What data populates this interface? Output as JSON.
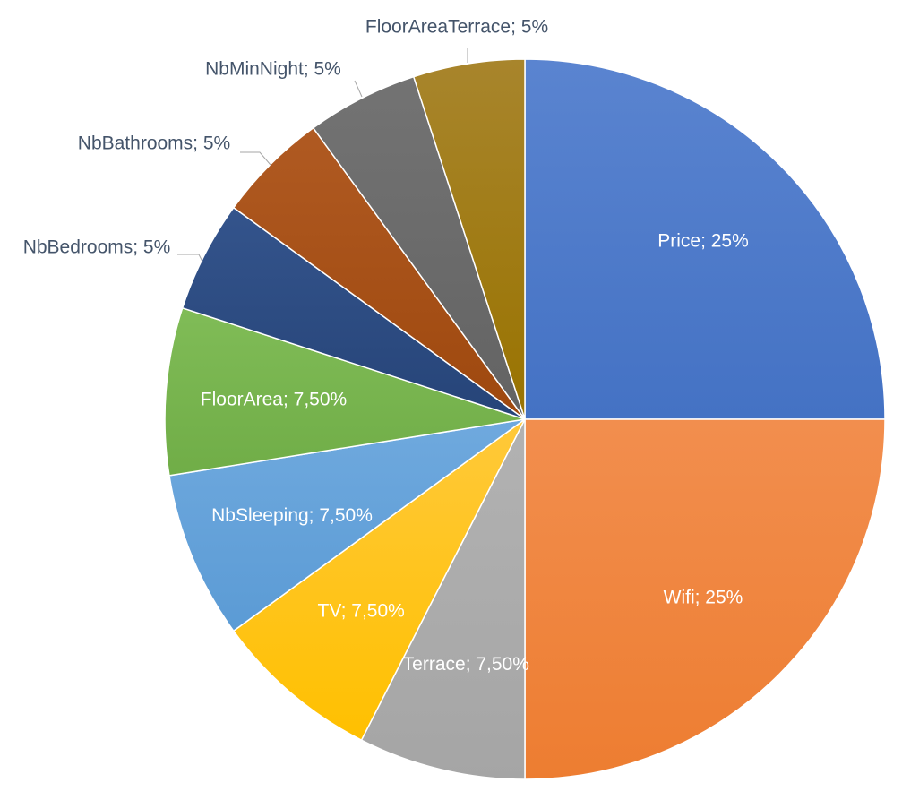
{
  "chart_data": {
    "type": "pie",
    "title": "",
    "start_angle_deg": 0,
    "direction": "clockwise",
    "slices": [
      {
        "name": "Price",
        "value": 25,
        "label": "Price; 25%",
        "color": "#4472C4",
        "color_light": "#5A84D0",
        "label_style": "inside"
      },
      {
        "name": "Wifi",
        "value": 25,
        "label": "Wifi; 25%",
        "color": "#ED7D31",
        "color_light": "#F28E4E",
        "label_style": "inside"
      },
      {
        "name": "Terrace",
        "value": 7.5,
        "label": "Terrace; 7,50%",
        "color": "#A5A5A5",
        "color_light": "#B2B2B2",
        "label_style": "inside"
      },
      {
        "name": "TV",
        "value": 7.5,
        "label": "TV; 7,50%",
        "color": "#FFC000",
        "color_light": "#FFC93A",
        "label_style": "inside"
      },
      {
        "name": "NbSleeping",
        "value": 7.5,
        "label": "NbSleeping; 7,50%",
        "color": "#5B9BD5",
        "color_light": "#6FA9DE",
        "label_style": "inside"
      },
      {
        "name": "FloorArea",
        "value": 7.5,
        "label": "FloorArea; 7,50%",
        "color": "#70AD47",
        "color_light": "#80BC57",
        "label_style": "inside"
      },
      {
        "name": "NbBedrooms",
        "value": 5,
        "label": "NbBedrooms; 5%",
        "color": "#264478",
        "color_light": "#34548C",
        "label_style": "outside"
      },
      {
        "name": "NbBathrooms",
        "value": 5,
        "label": "NbBathrooms; 5%",
        "color": "#9E480E",
        "color_light": "#B05A22",
        "label_style": "outside"
      },
      {
        "name": "NbMinNight",
        "value": 5,
        "label": "NbMinNight; 5%",
        "color": "#636363",
        "color_light": "#737373",
        "label_style": "outside"
      },
      {
        "name": "FloorAreaTerrace",
        "value": 5,
        "label": "FloorAreaTerrace; 5%",
        "color": "#997300",
        "color_light": "#A8852C",
        "label_style": "outside"
      }
    ],
    "legend": "none",
    "label_text_color_inside": "#FFFFFF",
    "label_text_color_outside": "#44546A",
    "leader_line_color": "#A6A6A6"
  }
}
